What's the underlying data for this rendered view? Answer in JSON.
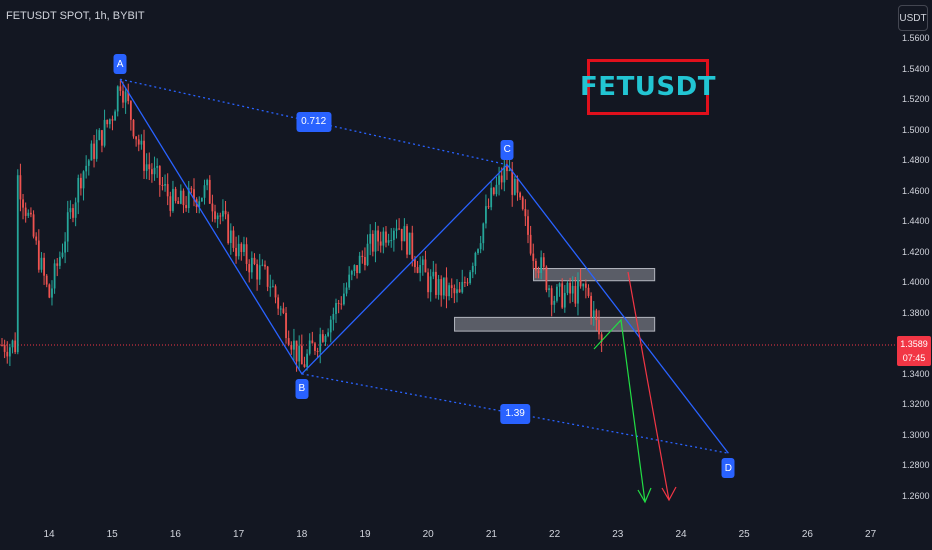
{
  "header": {
    "symbol_title": "FETUSDT SPOT, 1h, BYBIT"
  },
  "toolbar": {
    "currency_label": "USDT"
  },
  "brand": {
    "text": "FETUSDT"
  },
  "price_scale": {
    "ticks": [
      "1.5600",
      "1.5400",
      "1.5200",
      "1.5000",
      "1.4800",
      "1.4600",
      "1.4400",
      "1.4200",
      "1.4000",
      "1.3800",
      "1.3400",
      "1.3200",
      "1.3000",
      "1.2800",
      "1.2600"
    ],
    "current_price": "1.3589",
    "countdown": "07:45"
  },
  "time_axis": {
    "labels": [
      "14",
      "15",
      "16",
      "17",
      "18",
      "19",
      "20",
      "21",
      "22",
      "23",
      "24",
      "25",
      "26",
      "27"
    ]
  },
  "pattern": {
    "points": [
      {
        "label": "A",
        "time": "15 03:00",
        "price": 1.533
      },
      {
        "label": "B",
        "time": "18 00:00",
        "price": 1.34
      },
      {
        "label": "C",
        "time": "21 06:00",
        "price": 1.477
      },
      {
        "label": "D",
        "time": "24 18:00",
        "price": 1.288
      }
    ],
    "ratios": [
      "0.712",
      "1.39"
    ]
  },
  "zones": [
    {
      "name": "resistance",
      "top": 1.409,
      "bottom": 1.401,
      "from": "21 16:00",
      "to": "23 14:00"
    },
    {
      "name": "support",
      "top": 1.377,
      "bottom": 1.368,
      "from": "20 10:00",
      "to": "23 14:00"
    }
  ],
  "arrows": [
    {
      "name": "green-projection",
      "color": "#22dd44"
    },
    {
      "name": "red-projection",
      "color": "#f23645"
    }
  ],
  "colors": {
    "background": "#131722",
    "up": "#26a69a",
    "down": "#ef5350",
    "pattern": "#2962ff",
    "brand_border": "#e0101c",
    "brand_text": "#22c5d3"
  },
  "chart_data": {
    "type": "candlestick",
    "x_range": [
      "13 12:00",
      "27 12:00"
    ],
    "ylim": [
      1.25,
      1.57
    ],
    "series": [
      {
        "x": "13 12:00",
        "price": 1.47
      },
      {
        "x": "14 00:00",
        "price": 1.39
      },
      {
        "x": "14 12:00",
        "price": 1.47
      },
      {
        "x": "15 00:00",
        "price": 1.51
      },
      {
        "x": "15 03:00",
        "price": 1.533
      },
      {
        "x": "15 12:00",
        "price": 1.48
      },
      {
        "x": "16 00:00",
        "price": 1.45
      },
      {
        "x": "16 12:00",
        "price": 1.46
      },
      {
        "x": "17 00:00",
        "price": 1.42
      },
      {
        "x": "17 12:00",
        "price": 1.4
      },
      {
        "x": "18 00:00",
        "price": 1.345
      },
      {
        "x": "18 12:00",
        "price": 1.38
      },
      {
        "x": "19 00:00",
        "price": 1.42
      },
      {
        "x": "19 12:00",
        "price": 1.44
      },
      {
        "x": "20 00:00",
        "price": 1.4
      },
      {
        "x": "20 12:00",
        "price": 1.39
      },
      {
        "x": "21 00:00",
        "price": 1.455
      },
      {
        "x": "21 06:00",
        "price": 1.475
      },
      {
        "x": "21 16:00",
        "price": 1.42
      },
      {
        "x": "22 00:00",
        "price": 1.39
      },
      {
        "x": "22 12:00",
        "price": 1.395
      },
      {
        "x": "22 18:00",
        "price": 1.359
      }
    ]
  }
}
